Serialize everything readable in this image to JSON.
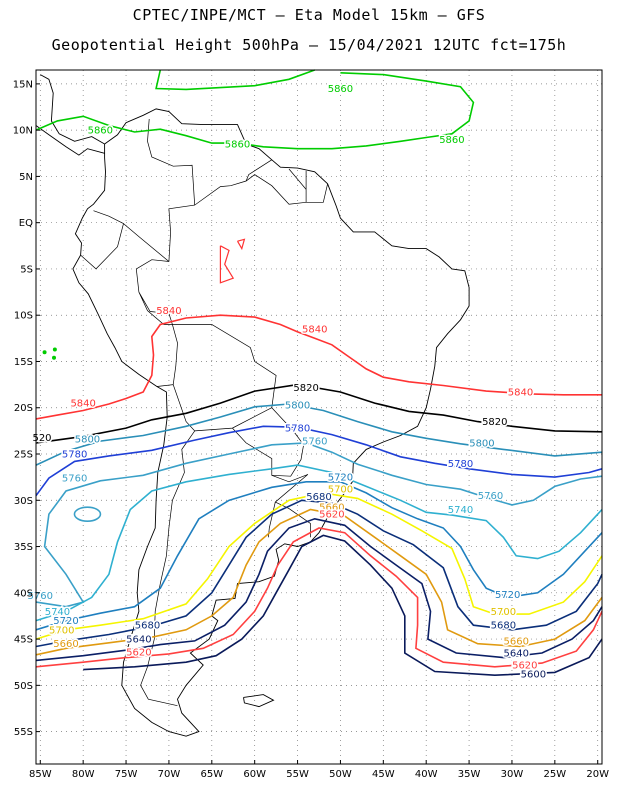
{
  "header": {
    "line1": "CPTEC/INPE/MCT –  Eta Model 15km – GFS",
    "line2": "Geopotential Height 500hPa – 15/04/2021 12UTC fct=175h"
  },
  "axes": {
    "lat_labels": [
      "15N",
      "10N",
      "5N",
      "EQ",
      "5S",
      "10S",
      "15S",
      "20S",
      "25S",
      "30S",
      "35S",
      "40S",
      "45S",
      "50S",
      "55S"
    ],
    "lon_labels": [
      "85W",
      "80W",
      "75W",
      "70W",
      "65W",
      "60W",
      "55W",
      "50W",
      "45W",
      "40W",
      "35W",
      "30W",
      "25W",
      "20W"
    ],
    "lon_range": [
      -85.5,
      -19.5
    ],
    "lat_range": [
      -58.5,
      16.5
    ],
    "grid": "dotted"
  },
  "contours": [
    {
      "level": "5860",
      "color": "#00cc00"
    },
    {
      "level": "5840",
      "color": "#ff3333"
    },
    {
      "level": "5820",
      "color": "#000000"
    },
    {
      "level": "5800",
      "color": "#2a8fb8"
    },
    {
      "level": "5780",
      "color": "#1f3fd6"
    },
    {
      "level": "5760",
      "color": "#3aa0c8"
    },
    {
      "level": "5740",
      "color": "#2fb0d0"
    },
    {
      "level": "5720",
      "color": "#1f7fbf"
    },
    {
      "level": "5700",
      "color": "#f5f500"
    },
    {
      "level": "5680",
      "color": "#0b2f7a"
    },
    {
      "level": "5660",
      "color": "#e09a10"
    },
    {
      "level": "5640",
      "color": "#0b1f66"
    },
    {
      "level": "5620",
      "color": "#ff4040"
    },
    {
      "level": "5600",
      "color": "#0a1a5a"
    }
  ],
  "labels": [
    {
      "text": "5860",
      "lon": -50.0,
      "lat": 14.5,
      "color": "#00cc00"
    },
    {
      "text": "5860",
      "lon": -78.0,
      "lat": 10.0,
      "color": "#00cc00"
    },
    {
      "text": "5860",
      "lon": -62.0,
      "lat": 8.5,
      "color": "#00cc00"
    },
    {
      "text": "5860",
      "lon": -37.0,
      "lat": 9.0,
      "color": "#00cc00"
    },
    {
      "text": "5840",
      "lon": -70.0,
      "lat": -9.5,
      "color": "#ff3333"
    },
    {
      "text": "5840",
      "lon": -53.0,
      "lat": -11.5,
      "color": "#ff3333"
    },
    {
      "text": "5840",
      "lon": -80.0,
      "lat": -19.5,
      "color": "#ff3333"
    },
    {
      "text": "5840",
      "lon": -29.0,
      "lat": -18.3,
      "color": "#ff3333"
    },
    {
      "text": "5820",
      "lon": -54.0,
      "lat": -17.8,
      "color": "#000000"
    },
    {
      "text": "5820",
      "lon": -32.0,
      "lat": -21.5,
      "color": "#000000"
    },
    {
      "text": "520",
      "lon": -84.8,
      "lat": -23.2,
      "color": "#000000"
    },
    {
      "text": "5800",
      "lon": -55.0,
      "lat": -19.7,
      "color": "#2a8fb8"
    },
    {
      "text": "5800",
      "lon": -79.5,
      "lat": -23.4,
      "color": "#2a8fb8"
    },
    {
      "text": "5800",
      "lon": -33.5,
      "lat": -23.8,
      "color": "#2a8fb8"
    },
    {
      "text": "5780",
      "lon": -55.0,
      "lat": -22.2,
      "color": "#1f3fd6"
    },
    {
      "text": "5780",
      "lon": -81.0,
      "lat": -25.0,
      "color": "#1f3fd6"
    },
    {
      "text": "5780",
      "lon": -36.0,
      "lat": -26.0,
      "color": "#1f3fd6"
    },
    {
      "text": "5760",
      "lon": -53.0,
      "lat": -23.6,
      "color": "#3aa0c8"
    },
    {
      "text": "5760",
      "lon": -81.0,
      "lat": -27.6,
      "color": "#3aa0c8"
    },
    {
      "text": "5760",
      "lon": -32.5,
      "lat": -29.5,
      "color": "#3aa0c8"
    },
    {
      "text": "5760",
      "lon": -85.0,
      "lat": -40.3,
      "color": "#3aa0c8"
    },
    {
      "text": "5740",
      "lon": -36.0,
      "lat": -31.0,
      "color": "#2fb0d0"
    },
    {
      "text": "5740",
      "lon": -83.0,
      "lat": -42.0,
      "color": "#2fb0d0"
    },
    {
      "text": "5720",
      "lon": -50.0,
      "lat": -27.5,
      "color": "#1f7fbf"
    },
    {
      "text": "5720",
      "lon": -82.0,
      "lat": -43.0,
      "color": "#1f7fbf"
    },
    {
      "text": "5720",
      "lon": -30.5,
      "lat": -40.2,
      "color": "#1f7fbf"
    },
    {
      "text": "5700",
      "lon": -50.0,
      "lat": -28.8,
      "color": "#e0c000"
    },
    {
      "text": "5700",
      "lon": -82.5,
      "lat": -44.0,
      "color": "#e0c000"
    },
    {
      "text": "5700",
      "lon": -31.0,
      "lat": -42.0,
      "color": "#e0c000"
    },
    {
      "text": "5680",
      "lon": -52.5,
      "lat": -29.6,
      "color": "#0b2f7a"
    },
    {
      "text": "5680",
      "lon": -72.5,
      "lat": -43.5,
      "color": "#0b2f7a"
    },
    {
      "text": "5680",
      "lon": -31.0,
      "lat": -43.5,
      "color": "#0b2f7a"
    },
    {
      "text": "5660",
      "lon": -51.0,
      "lat": -30.7,
      "color": "#e09a10"
    },
    {
      "text": "5660",
      "lon": -82.0,
      "lat": -45.5,
      "color": "#e09a10"
    },
    {
      "text": "5660",
      "lon": -29.5,
      "lat": -45.2,
      "color": "#e09a10"
    },
    {
      "text": "5640",
      "lon": -73.5,
      "lat": -45.0,
      "color": "#0b1f66"
    },
    {
      "text": "5640",
      "lon": -29.5,
      "lat": -46.5,
      "color": "#0b1f66"
    },
    {
      "text": "5620",
      "lon": -73.5,
      "lat": -46.4,
      "color": "#ff4040"
    },
    {
      "text": "5620",
      "lon": -28.5,
      "lat": -47.8,
      "color": "#ff4040"
    },
    {
      "text": "5620",
      "lon": -51.0,
      "lat": -31.5,
      "color": "#ff4040"
    },
    {
      "text": "5600",
      "lon": -27.5,
      "lat": -48.8,
      "color": "#0a1a5a"
    }
  ]
}
